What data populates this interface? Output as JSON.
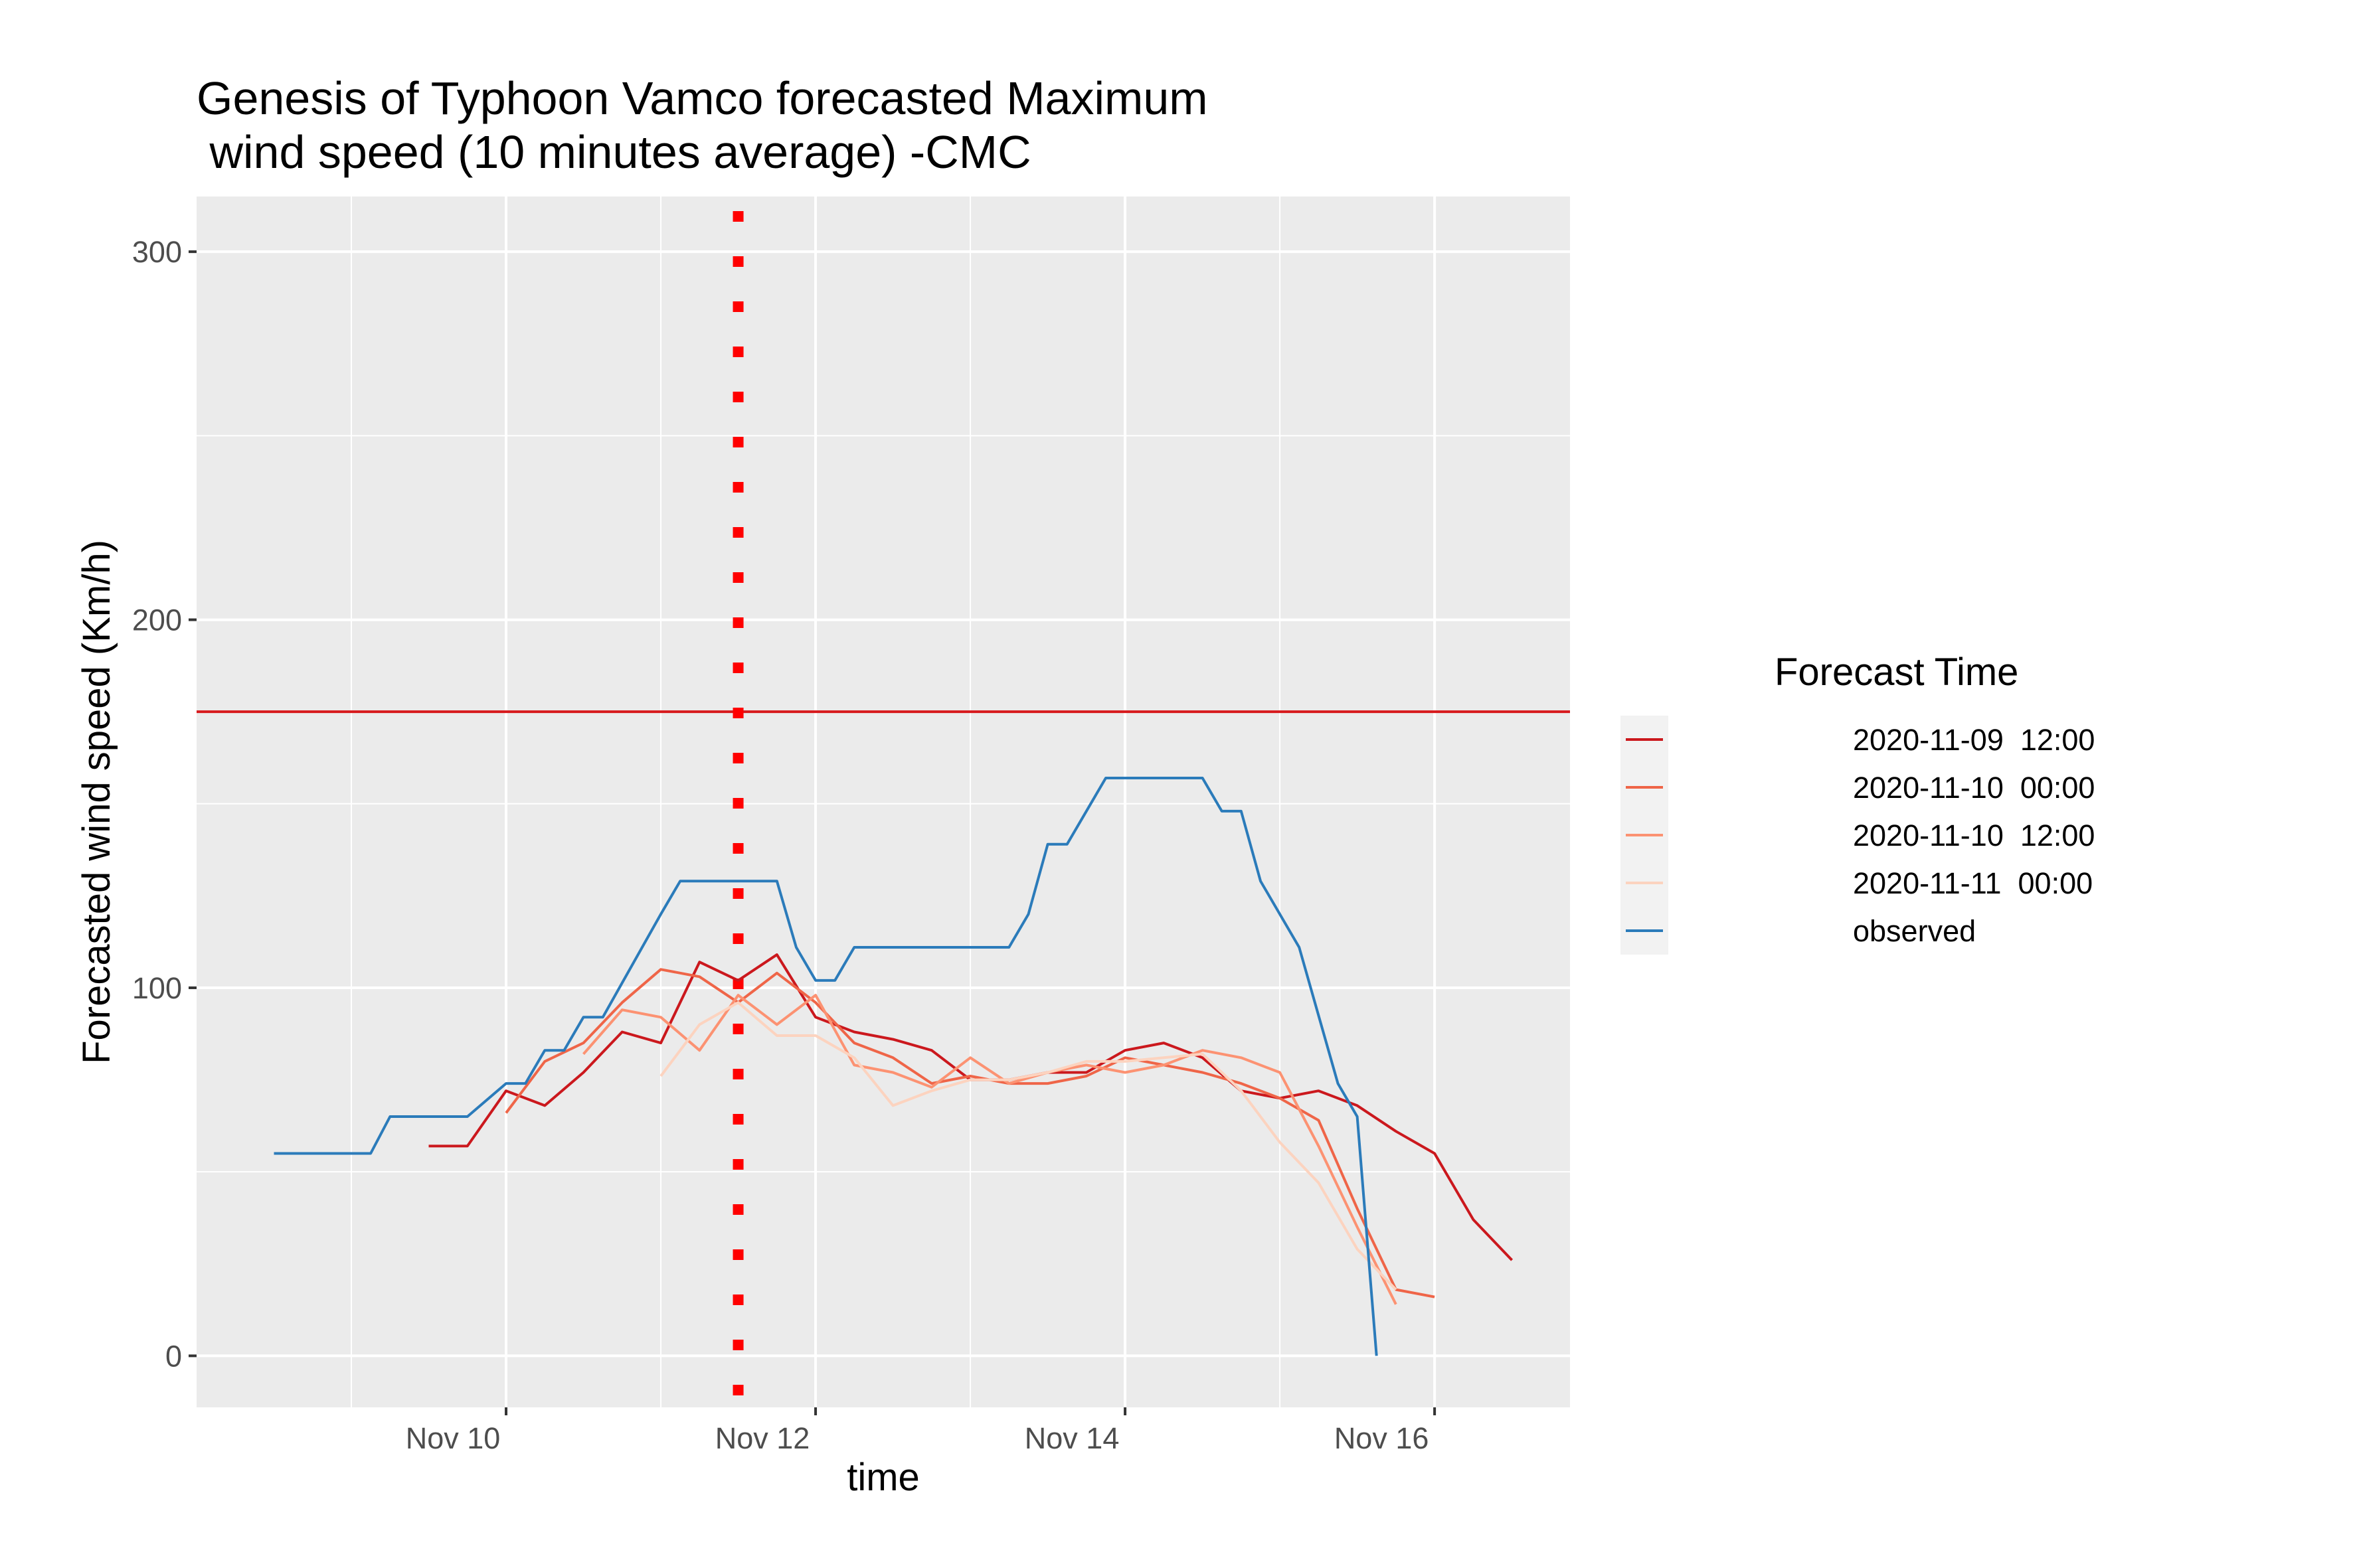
{
  "chart_data": {
    "type": "line",
    "title_line1": "Genesis of Typhoon Vamco forecasted Maximum",
    "title_line2": " wind speed (10 minutes average) -CMC",
    "xlabel": "time",
    "ylabel": "Forecasted wind speed (Km/h)",
    "xlim": [
      "2020-11-08 00:00",
      "2020-11-16 21:00"
    ],
    "ylim": [
      -14,
      315
    ],
    "x_ticks": [
      {
        "t": "2020-11-10 00:00",
        "label": "Nov 10"
      },
      {
        "t": "2020-11-12 00:00",
        "label": "Nov 12"
      },
      {
        "t": "2020-11-14 00:00",
        "label": "Nov 14"
      },
      {
        "t": "2020-11-16 00:00",
        "label": "Nov 16"
      }
    ],
    "y_ticks": [
      0,
      100,
      200,
      300
    ],
    "hline": {
      "y": 175,
      "color": "#d7191c"
    },
    "vline": {
      "t": "2020-11-11 12:00",
      "color": "#ff0000",
      "style": "dotted"
    },
    "grid": true,
    "legend": {
      "title": "Forecast Time",
      "position": "right"
    },
    "series": [
      {
        "name": "2020-11-09  12:00",
        "color": "#cb181d",
        "points": [
          [
            "2020-11-09 12:00",
            57
          ],
          [
            "2020-11-09 18:00",
            57
          ],
          [
            "2020-11-10 00:00",
            72
          ],
          [
            "2020-11-10 06:00",
            68
          ],
          [
            "2020-11-10 12:00",
            77
          ],
          [
            "2020-11-10 18:00",
            88
          ],
          [
            "2020-11-11 00:00",
            85
          ],
          [
            "2020-11-11 06:00",
            107
          ],
          [
            "2020-11-11 12:00",
            102
          ],
          [
            "2020-11-11 18:00",
            109
          ],
          [
            "2020-11-12 00:00",
            92
          ],
          [
            "2020-11-12 06:00",
            88
          ],
          [
            "2020-11-12 12:00",
            86
          ],
          [
            "2020-11-12 18:00",
            83
          ],
          [
            "2020-11-13 00:00",
            75
          ],
          [
            "2020-11-13 06:00",
            75
          ],
          [
            "2020-11-13 12:00",
            77
          ],
          [
            "2020-11-13 18:00",
            77
          ],
          [
            "2020-11-14 00:00",
            83
          ],
          [
            "2020-11-14 06:00",
            85
          ],
          [
            "2020-11-14 12:00",
            81
          ],
          [
            "2020-11-14 18:00",
            72
          ],
          [
            "2020-11-15 00:00",
            70
          ],
          [
            "2020-11-15 06:00",
            72
          ],
          [
            "2020-11-15 12:00",
            68
          ],
          [
            "2020-11-15 18:00",
            61
          ],
          [
            "2020-11-16 00:00",
            55
          ],
          [
            "2020-11-16 06:00",
            37
          ],
          [
            "2020-11-16 12:00",
            26
          ]
        ]
      },
      {
        "name": "2020-11-10  00:00",
        "color": "#ef6548",
        "points": [
          [
            "2020-11-10 00:00",
            66
          ],
          [
            "2020-11-10 06:00",
            80
          ],
          [
            "2020-11-10 12:00",
            85
          ],
          [
            "2020-11-10 18:00",
            96
          ],
          [
            "2020-11-11 00:00",
            105
          ],
          [
            "2020-11-11 06:00",
            103
          ],
          [
            "2020-11-11 12:00",
            96
          ],
          [
            "2020-11-11 18:00",
            104
          ],
          [
            "2020-11-12 00:00",
            96
          ],
          [
            "2020-11-12 06:00",
            85
          ],
          [
            "2020-11-12 12:00",
            81
          ],
          [
            "2020-11-12 18:00",
            74
          ],
          [
            "2020-11-13 00:00",
            76
          ],
          [
            "2020-11-13 06:00",
            74
          ],
          [
            "2020-11-13 12:00",
            74
          ],
          [
            "2020-11-13 18:00",
            76
          ],
          [
            "2020-11-14 00:00",
            81
          ],
          [
            "2020-11-14 06:00",
            79
          ],
          [
            "2020-11-14 12:00",
            77
          ],
          [
            "2020-11-14 18:00",
            74
          ],
          [
            "2020-11-15 00:00",
            70
          ],
          [
            "2020-11-15 06:00",
            64
          ],
          [
            "2020-11-15 12:00",
            40
          ],
          [
            "2020-11-15 18:00",
            18
          ],
          [
            "2020-11-16 00:00",
            16
          ]
        ]
      },
      {
        "name": "2020-11-10  12:00",
        "color": "#fc9272",
        "points": [
          [
            "2020-11-10 12:00",
            82
          ],
          [
            "2020-11-10 18:00",
            94
          ],
          [
            "2020-11-11 00:00",
            92
          ],
          [
            "2020-11-11 06:00",
            83
          ],
          [
            "2020-11-11 12:00",
            98
          ],
          [
            "2020-11-11 18:00",
            90
          ],
          [
            "2020-11-12 00:00",
            98
          ],
          [
            "2020-11-12 06:00",
            79
          ],
          [
            "2020-11-12 12:00",
            77
          ],
          [
            "2020-11-12 18:00",
            73
          ],
          [
            "2020-11-13 00:00",
            81
          ],
          [
            "2020-11-13 06:00",
            74
          ],
          [
            "2020-11-13 12:00",
            77
          ],
          [
            "2020-11-13 18:00",
            79
          ],
          [
            "2020-11-14 00:00",
            77
          ],
          [
            "2020-11-14 06:00",
            79
          ],
          [
            "2020-11-14 12:00",
            83
          ],
          [
            "2020-11-14 18:00",
            81
          ],
          [
            "2020-11-15 00:00",
            77
          ],
          [
            "2020-11-15 06:00",
            57
          ],
          [
            "2020-11-15 12:00",
            35
          ],
          [
            "2020-11-15 18:00",
            14
          ]
        ]
      },
      {
        "name": "2020-11-11  00:00",
        "color": "#fcd3bf",
        "points": [
          [
            "2020-11-11 00:00",
            76
          ],
          [
            "2020-11-11 06:00",
            90
          ],
          [
            "2020-11-11 12:00",
            96
          ],
          [
            "2020-11-11 18:00",
            87
          ],
          [
            "2020-11-12 00:00",
            87
          ],
          [
            "2020-11-12 06:00",
            81
          ],
          [
            "2020-11-12 12:00",
            68
          ],
          [
            "2020-11-12 18:00",
            72
          ],
          [
            "2020-11-13 00:00",
            75
          ],
          [
            "2020-11-13 06:00",
            75
          ],
          [
            "2020-11-13 12:00",
            77
          ],
          [
            "2020-11-13 18:00",
            80
          ],
          [
            "2020-11-14 00:00",
            80
          ],
          [
            "2020-11-14 06:00",
            81
          ],
          [
            "2020-11-14 12:00",
            82
          ],
          [
            "2020-11-14 18:00",
            72
          ],
          [
            "2020-11-15 00:00",
            58
          ],
          [
            "2020-11-15 06:00",
            47
          ],
          [
            "2020-11-15 12:00",
            29
          ],
          [
            "2020-11-15 18:00",
            18
          ]
        ]
      },
      {
        "name": "observed",
        "color": "#2b7bba",
        "points": [
          [
            "2020-11-08 12:00",
            55
          ],
          [
            "2020-11-09 00:00",
            55
          ],
          [
            "2020-11-09 03:00",
            55
          ],
          [
            "2020-11-09 06:00",
            65
          ],
          [
            "2020-11-09 12:00",
            65
          ],
          [
            "2020-11-09 18:00",
            65
          ],
          [
            "2020-11-10 00:00",
            74
          ],
          [
            "2020-11-10 03:00",
            74
          ],
          [
            "2020-11-10 06:00",
            83
          ],
          [
            "2020-11-10 09:00",
            83
          ],
          [
            "2020-11-10 12:00",
            92
          ],
          [
            "2020-11-10 15:00",
            92
          ],
          [
            "2020-11-11 00:00",
            120
          ],
          [
            "2020-11-11 03:00",
            129
          ],
          [
            "2020-11-11 18:00",
            129
          ],
          [
            "2020-11-11 21:00",
            111
          ],
          [
            "2020-11-12 00:00",
            102
          ],
          [
            "2020-11-12 03:00",
            102
          ],
          [
            "2020-11-12 06:00",
            111
          ],
          [
            "2020-11-13 06:00",
            111
          ],
          [
            "2020-11-13 09:00",
            120
          ],
          [
            "2020-11-13 12:00",
            139
          ],
          [
            "2020-11-13 15:00",
            139
          ],
          [
            "2020-11-13 21:00",
            157
          ],
          [
            "2020-11-14 12:00",
            157
          ],
          [
            "2020-11-14 15:00",
            148
          ],
          [
            "2020-11-14 18:00",
            148
          ],
          [
            "2020-11-14 21:00",
            129
          ],
          [
            "2020-11-15 03:00",
            111
          ],
          [
            "2020-11-15 09:00",
            74
          ],
          [
            "2020-11-15 12:00",
            65
          ],
          [
            "2020-11-15 15:00",
            0
          ]
        ]
      }
    ]
  }
}
